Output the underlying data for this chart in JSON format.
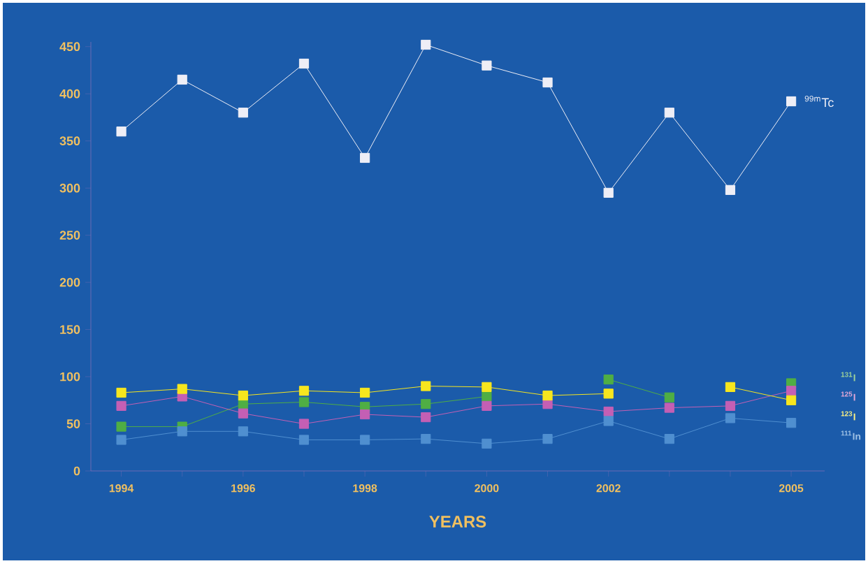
{
  "chart_data": {
    "type": "line",
    "xlabel": "YEARS",
    "marker": "square",
    "legend": false,
    "grid": false,
    "x": [
      1994,
      1995,
      1996,
      1997,
      1998,
      1999,
      2000,
      2001,
      2002,
      2003,
      2004,
      2005
    ],
    "xlim": [
      1993.5,
      2005.55
    ],
    "xticks": [
      1994,
      {
        "value": 1995,
        "label": null
      },
      1996,
      {
        "value": 1997,
        "label": null
      },
      1998,
      {
        "value": 1999,
        "label": null
      },
      2000,
      {
        "value": 2001,
        "label": null
      },
      2002,
      {
        "value": 2003,
        "label": null
      },
      {
        "value": 2004,
        "label": null
      },
      2005
    ],
    "ylim": [
      0,
      455
    ],
    "yticks": [
      0,
      50,
      100,
      150,
      200,
      250,
      300,
      350,
      400,
      450
    ],
    "series": [
      {
        "name": "$^{99m}$Tc",
        "color": "#eeeef6",
        "values": [
          360,
          415,
          380,
          432,
          332,
          452,
          430,
          412,
          295,
          380,
          298,
          392
        ]
      },
      {
        "name": "$^{131}$I",
        "color": "#4fae44",
        "values": [
          47,
          47,
          71,
          73,
          68,
          71,
          79,
          null,
          97,
          78,
          null,
          93
        ]
      },
      {
        "name": "$^{125}$I",
        "color": "#c45fb4",
        "values": [
          69,
          79,
          61,
          50,
          60,
          57,
          69,
          71,
          63,
          67,
          69,
          85
        ]
      },
      {
        "name": "$^{123}$I",
        "color": "#f6e61e",
        "values": [
          83,
          87,
          80,
          85,
          83,
          90,
          89,
          80,
          82,
          null,
          89,
          75
        ]
      },
      {
        "name": "$^{111}$In",
        "color": "#4f8fd0",
        "values": [
          33,
          42,
          42,
          33,
          33,
          34,
          29,
          34,
          53,
          34,
          56,
          51
        ]
      }
    ]
  }
}
